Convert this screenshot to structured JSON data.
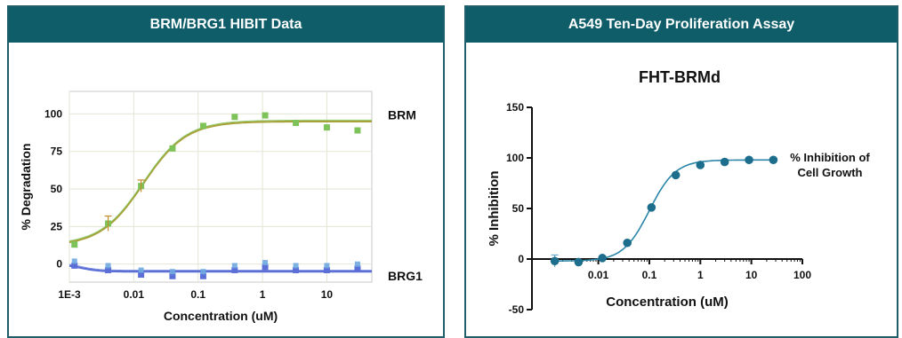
{
  "panels": {
    "left_header": "BRM/BRG1 HIBIT Data",
    "right_header": "A549 Ten-Day Proliferation Assay"
  },
  "chart_data": [
    {
      "type": "scatter",
      "title": "",
      "xlabel": "Concentration (uM)",
      "ylabel": "% Degradation",
      "x_scale": "log",
      "xlim": [
        0.001,
        50
      ],
      "ylim": [
        -12,
        115
      ],
      "x_ticks": [
        {
          "value": 0.001,
          "label": "1E-3"
        },
        {
          "value": 0.01,
          "label": "0.01"
        },
        {
          "value": 0.1,
          "label": "0.1"
        },
        {
          "value": 1,
          "label": "1"
        },
        {
          "value": 10,
          "label": "10"
        }
      ],
      "y_ticks": [
        {
          "value": 0,
          "label": "0"
        },
        {
          "value": 25,
          "label": "25"
        },
        {
          "value": 50,
          "label": "50"
        },
        {
          "value": 75,
          "label": "75"
        },
        {
          "value": 100,
          "label": "100"
        }
      ],
      "grid": true,
      "series": [
        {
          "name": "BRM",
          "color": "#7dc35a",
          "fit_color": "#a8a23a",
          "x": [
            0.0012,
            0.004,
            0.013,
            0.04,
            0.12,
            0.37,
            1.1,
            3.3,
            10,
            30
          ],
          "y": [
            13,
            27,
            52,
            77,
            92,
            98,
            99,
            94,
            91,
            89
          ],
          "fit": {
            "bottom": 12,
            "top": 95,
            "ec50": 0.014,
            "hill": 1.3
          }
        },
        {
          "name": "BRG1",
          "color": "#5b6fd6",
          "fit_color": "#5b6fd6",
          "x": [
            0.0012,
            0.004,
            0.013,
            0.04,
            0.12,
            0.37,
            1.1,
            3.3,
            10,
            30
          ],
          "y": [
            -1,
            -4,
            -7,
            -8,
            -8,
            -4,
            -2,
            -4,
            -4,
            -3
          ],
          "fit": {
            "bottom": 0,
            "top": -5,
            "ec50": 0.0015,
            "hill": 3
          }
        }
      ]
    },
    {
      "type": "scatter",
      "title": "FHT-BRMd",
      "xlabel": "Concentration (uM)",
      "ylabel": "% Inhibition",
      "x_scale": "log",
      "xlim": [
        0.0005,
        100
      ],
      "ylim": [
        -50,
        150
      ],
      "x_ticks": [
        {
          "value": 0.01,
          "label": "0.01"
        },
        {
          "value": 0.1,
          "label": "0.1"
        },
        {
          "value": 1,
          "label": "1"
        },
        {
          "value": 10,
          "label": "10"
        },
        {
          "value": 100,
          "label": "100"
        }
      ],
      "y_ticks": [
        {
          "value": -50,
          "label": "-50"
        },
        {
          "value": 0,
          "label": "0"
        },
        {
          "value": 50,
          "label": "50"
        },
        {
          "value": 100,
          "label": "100"
        },
        {
          "value": 150,
          "label": "150"
        }
      ],
      "grid": false,
      "series": [
        {
          "name": "% Inhibition of Cell Growth",
          "legend_lines": [
            "% Inhibition of",
            "Cell Growth"
          ],
          "color": "#1c6e8c",
          "fit_color": "#2a86a8",
          "x": [
            0.0014,
            0.0041,
            0.012,
            0.037,
            0.11,
            0.33,
            1,
            3,
            9,
            27
          ],
          "y": [
            -2,
            -3,
            1,
            16,
            51,
            83,
            93,
            96,
            98,
            98
          ],
          "fit": {
            "bottom": -2,
            "top": 98,
            "ec50": 0.1,
            "hill": 1.7
          }
        }
      ]
    }
  ]
}
